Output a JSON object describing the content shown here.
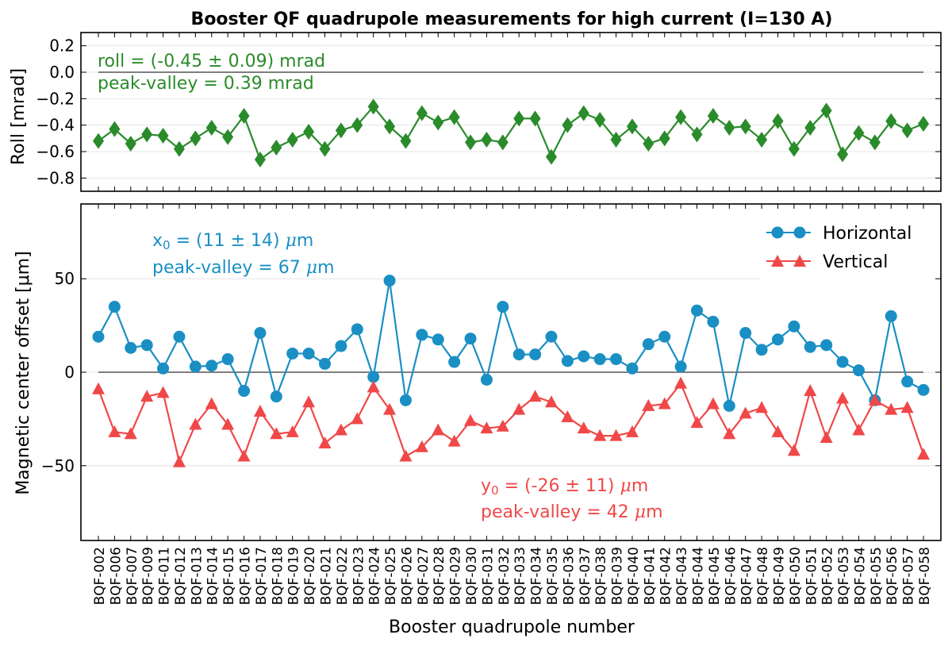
{
  "chart_data": [
    {
      "type": "line",
      "title": "Booster QF quadrupole measurements for high current (I=130 A)",
      "ylabel": "Roll [mrad]",
      "ylim": [
        -0.9,
        0.3
      ],
      "yticks": [
        0.2,
        0.0,
        -0.2,
        -0.4,
        -0.6,
        -0.8
      ],
      "ytick_labels": [
        "0.2",
        "0.0",
        "−0.2",
        "−0.4",
        "−0.6",
        "−0.8"
      ],
      "grid": true,
      "series": [
        {
          "name": "Roll",
          "color": "#2a8b2a",
          "marker": "diamond",
          "values": [
            -0.52,
            -0.43,
            -0.54,
            -0.47,
            -0.48,
            -0.58,
            -0.5,
            -0.42,
            -0.49,
            -0.33,
            -0.66,
            -0.57,
            -0.51,
            -0.45,
            -0.58,
            -0.44,
            -0.4,
            -0.26,
            -0.41,
            -0.52,
            -0.31,
            -0.38,
            -0.34,
            -0.53,
            -0.51,
            -0.53,
            -0.35,
            -0.35,
            -0.64,
            -0.4,
            -0.31,
            -0.36,
            -0.51,
            -0.41,
            -0.54,
            -0.5,
            -0.34,
            -0.47,
            -0.33,
            -0.42,
            -0.41,
            -0.51,
            -0.37,
            -0.58,
            -0.42,
            -0.29,
            -0.62,
            -0.46,
            -0.53,
            -0.37,
            -0.44,
            -0.39
          ]
        }
      ],
      "annotations": [
        "roll = (-0.45 ± 0.09) mrad",
        "peak-valley = 0.39 mrad"
      ]
    },
    {
      "type": "line",
      "xlabel": "Booster quadrupole number",
      "ylabel": "Magnetic center offset [μm]",
      "ylim": [
        -90,
        90
      ],
      "yticks": [
        50,
        0,
        -50
      ],
      "ytick_labels": [
        "50",
        "0",
        "−50"
      ],
      "grid": true,
      "legend": "top-right",
      "series": [
        {
          "name": "Horizontal",
          "color": "#1a8fc4",
          "marker": "circle",
          "values": [
            19,
            35,
            13,
            14.5,
            2,
            19,
            3,
            3.5,
            7,
            -10,
            21,
            -13,
            10,
            10,
            4.5,
            14,
            23,
            -2.5,
            49,
            -15,
            20,
            17.5,
            5.5,
            18,
            -4,
            35,
            9.5,
            9.5,
            19,
            6,
            8.5,
            7,
            7,
            2,
            15,
            19,
            3,
            33,
            27,
            -18,
            21,
            12,
            17.5,
            24.5,
            13.5,
            14.5,
            5.5,
            1,
            -15,
            30,
            -5,
            -9.5
          ]
        },
        {
          "name": "Vertical",
          "color": "#f04848",
          "marker": "triangle",
          "values": [
            -9,
            -32,
            -33,
            -13,
            -11,
            -48,
            -28,
            -17,
            -28,
            -45,
            -21,
            -33,
            -32,
            -16,
            -38,
            -31,
            -25,
            -8,
            -20,
            -45,
            -40,
            -31,
            -37,
            -26,
            -30,
            -29,
            -20,
            -13,
            -16,
            -24,
            -30,
            -34,
            -34,
            -32,
            -18,
            -17,
            -6,
            -27,
            -17,
            -33,
            -22,
            -19,
            -32,
            -42,
            -10,
            -35,
            -14,
            -31,
            -15,
            -20,
            -19,
            -44
          ]
        }
      ],
      "annotations": [
        {
          "prefix": "x",
          "subscript": "0",
          "rest": " = (11 ± 14) ",
          "unit_symbol": "μ",
          "unit": "m"
        },
        {
          "text": "peak-valley = 67 ",
          "unit_symbol": "μ",
          "unit": "m"
        },
        {
          "prefix": "y",
          "subscript": "0",
          "rest": " = (-26 ± 11) ",
          "unit_symbol": "μ",
          "unit": "m"
        },
        {
          "text": "peak-valley = 42 ",
          "unit_symbol": "μ",
          "unit": "m"
        }
      ],
      "categories": [
        "BQF-002",
        "BQF-006",
        "BQF-007",
        "BQF-009",
        "BQF-011",
        "BQF-012",
        "BQF-013",
        "BQF-014",
        "BQF-015",
        "BQF-016",
        "BQF-017",
        "BQF-018",
        "BQF-019",
        "BQF-020",
        "BQF-021",
        "BQF-022",
        "BQF-023",
        "BQF-024",
        "BQF-025",
        "BQF-026",
        "BQF-027",
        "BQF-028",
        "BQF-029",
        "BQF-030",
        "BQF-031",
        "BQF-032",
        "BQF-033",
        "BQF-034",
        "BQF-035",
        "BQF-036",
        "BQF-037",
        "BQF-038",
        "BQF-039",
        "BQF-040",
        "BQF-041",
        "BQF-042",
        "BQF-043",
        "BQF-044",
        "BQF-045",
        "BQF-046",
        "BQF-047",
        "BQF-048",
        "BQF-049",
        "BQF-050",
        "BQF-051",
        "BQF-052",
        "BQF-053",
        "BQF-054",
        "BQF-055",
        "BQF-056",
        "BQF-057",
        "BQF-058"
      ]
    }
  ]
}
